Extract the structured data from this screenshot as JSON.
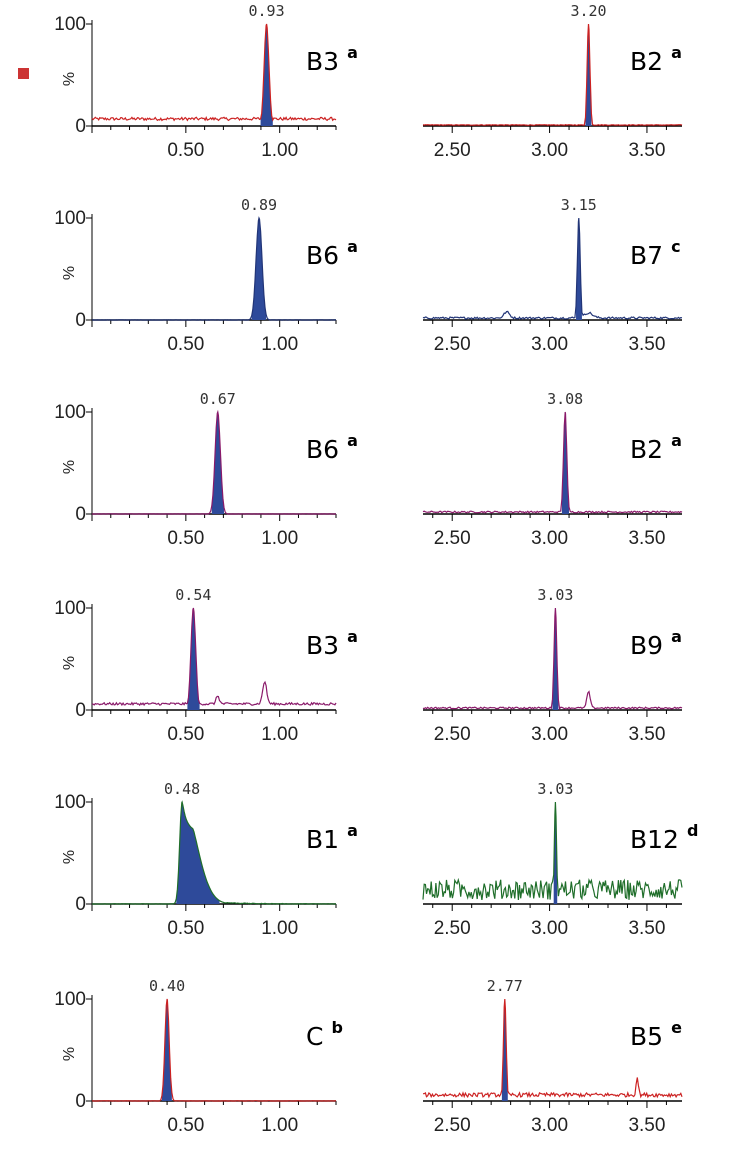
{
  "colors": {
    "red": "#cc2222",
    "navy": "#223577",
    "purple": "#8a1a6a",
    "green": "#1f6e2a",
    "fill": "#2e4a9a",
    "axis": "#000000"
  },
  "marker": {
    "icon": "red-square-icon",
    "color": "#cc3333"
  },
  "chart_data": [
    {
      "type": "line",
      "label": "B3",
      "sup": "a",
      "peak_label": "0.93",
      "peak_x": 0.93,
      "width": 0.018,
      "line_color": "red",
      "x_ticks": [
        "0.50",
        "1.00"
      ],
      "x_tick_values": [
        0.5,
        1.0
      ],
      "xlim": [
        0.0,
        1.3
      ],
      "y_ticks": [
        "100",
        "0"
      ],
      "ylabel": "%",
      "baseline": 7,
      "noise": 1.5,
      "bumps": []
    },
    {
      "type": "line",
      "label": "B2",
      "sup": "a",
      "peak_label": "3.20",
      "peak_x": 3.2,
      "width": 0.01,
      "line_color": "red",
      "x_ticks": [
        "2.50",
        "3.00",
        "3.50"
      ],
      "x_tick_values": [
        2.5,
        3.0,
        3.5
      ],
      "xlim": [
        2.35,
        3.68
      ],
      "y_ticks": [],
      "baseline": 1,
      "noise": 0.3,
      "bumps": []
    },
    {
      "type": "line",
      "label": "B6",
      "sup": "a",
      "peak_label": "0.89",
      "peak_x": 0.89,
      "width": 0.022,
      "line_color": "navy",
      "x_ticks": [
        "0.50",
        "1.00"
      ],
      "x_tick_values": [
        0.5,
        1.0
      ],
      "xlim": [
        0.0,
        1.3
      ],
      "y_ticks": [
        "100",
        "0"
      ],
      "ylabel": "%",
      "baseline": 0,
      "noise": 0.2,
      "bumps": []
    },
    {
      "type": "line",
      "label": "B7",
      "sup": "c",
      "peak_label": "3.15",
      "peak_x": 3.15,
      "width": 0.01,
      "line_color": "navy",
      "x_ticks": [
        "2.50",
        "3.00",
        "3.50"
      ],
      "x_tick_values": [
        2.5,
        3.0,
        3.5
      ],
      "xlim": [
        2.35,
        3.68
      ],
      "y_ticks": [],
      "baseline": 2,
      "noise": 1.0,
      "bumps": [
        [
          2.78,
          6,
          0.02
        ],
        [
          3.2,
          5,
          0.03
        ]
      ]
    },
    {
      "type": "line",
      "label": "B6",
      "sup": "a",
      "peak_label": "0.67",
      "peak_x": 0.67,
      "width": 0.02,
      "line_color": "purple",
      "x_ticks": [
        "0.50",
        "1.00"
      ],
      "x_tick_values": [
        0.5,
        1.0
      ],
      "xlim": [
        0.0,
        1.3
      ],
      "y_ticks": [
        "100",
        "0"
      ],
      "ylabel": "%",
      "baseline": 0,
      "noise": 0.2,
      "bumps": []
    },
    {
      "type": "line",
      "label": "B2",
      "sup": "a",
      "peak_label": "3.08",
      "peak_x": 3.08,
      "width": 0.012,
      "line_color": "purple",
      "x_ticks": [
        "2.50",
        "3.00",
        "3.50"
      ],
      "x_tick_values": [
        2.5,
        3.0,
        3.5
      ],
      "xlim": [
        2.35,
        3.68
      ],
      "y_ticks": [],
      "baseline": 2,
      "noise": 0.8,
      "bumps": []
    },
    {
      "type": "line",
      "label": "B3",
      "sup": "a",
      "peak_label": "0.54",
      "peak_x": 0.54,
      "width": 0.018,
      "line_color": "purple",
      "x_ticks": [
        "0.50",
        "1.00"
      ],
      "x_tick_values": [
        0.5,
        1.0
      ],
      "xlim": [
        0.0,
        1.3
      ],
      "y_ticks": [
        "100",
        "0"
      ],
      "ylabel": "%",
      "baseline": 6,
      "noise": 1.2,
      "bumps": [
        [
          0.67,
          8,
          0.012
        ],
        [
          0.92,
          22,
          0.015
        ]
      ]
    },
    {
      "type": "line",
      "label": "B9",
      "sup": "a",
      "peak_label": "3.03",
      "peak_x": 3.03,
      "width": 0.01,
      "line_color": "purple",
      "x_ticks": [
        "2.50",
        "3.00",
        "3.50"
      ],
      "x_tick_values": [
        2.5,
        3.0,
        3.5
      ],
      "xlim": [
        2.35,
        3.68
      ],
      "y_ticks": [],
      "baseline": 2,
      "noise": 0.8,
      "bumps": [
        [
          3.2,
          16,
          0.012
        ]
      ]
    },
    {
      "type": "line",
      "label": "B1",
      "sup": "a",
      "peak_label": "0.48",
      "peak_x": 0.48,
      "width": 0.018,
      "tail": 0.09,
      "line_color": "green",
      "x_ticks": [
        "0.50",
        "1.00"
      ],
      "x_tick_values": [
        0.5,
        1.0
      ],
      "xlim": [
        0.0,
        1.3
      ],
      "y_ticks": [
        "100",
        "0"
      ],
      "ylabel": "%",
      "baseline": 0,
      "noise": 0.3,
      "bumps": []
    },
    {
      "type": "line",
      "label": "B12",
      "sup": "d",
      "peak_label": "3.03",
      "peak_x": 3.03,
      "width": 0.008,
      "line_color": "green",
      "x_ticks": [
        "2.50",
        "3.00",
        "3.50"
      ],
      "x_tick_values": [
        2.5,
        3.0,
        3.5
      ],
      "xlim": [
        2.35,
        3.68
      ],
      "y_ticks": [],
      "baseline": 14,
      "noise": 10,
      "bumps": []
    },
    {
      "type": "line",
      "label": "C",
      "sup": "b",
      "peak_label": "0.40",
      "peak_x": 0.4,
      "width": 0.016,
      "line_color": "red",
      "x_ticks": [
        "0.50",
        "1.00"
      ],
      "x_tick_values": [
        0.5,
        1.0
      ],
      "xlim": [
        0.0,
        1.3
      ],
      "y_ticks": [
        "100",
        "0"
      ],
      "ylabel": "%",
      "baseline": 0,
      "noise": 0.3,
      "bumps": []
    },
    {
      "type": "line",
      "label": "B5",
      "sup": "e",
      "peak_label": "2.77",
      "peak_x": 2.77,
      "width": 0.01,
      "line_color": "red",
      "x_ticks": [
        "2.50",
        "3.00",
        "3.50"
      ],
      "x_tick_values": [
        2.5,
        3.0,
        3.5
      ],
      "xlim": [
        2.35,
        3.68
      ],
      "y_ticks": [],
      "baseline": 6,
      "noise": 2.0,
      "bumps": [
        [
          3.45,
          18,
          0.008
        ]
      ]
    }
  ]
}
